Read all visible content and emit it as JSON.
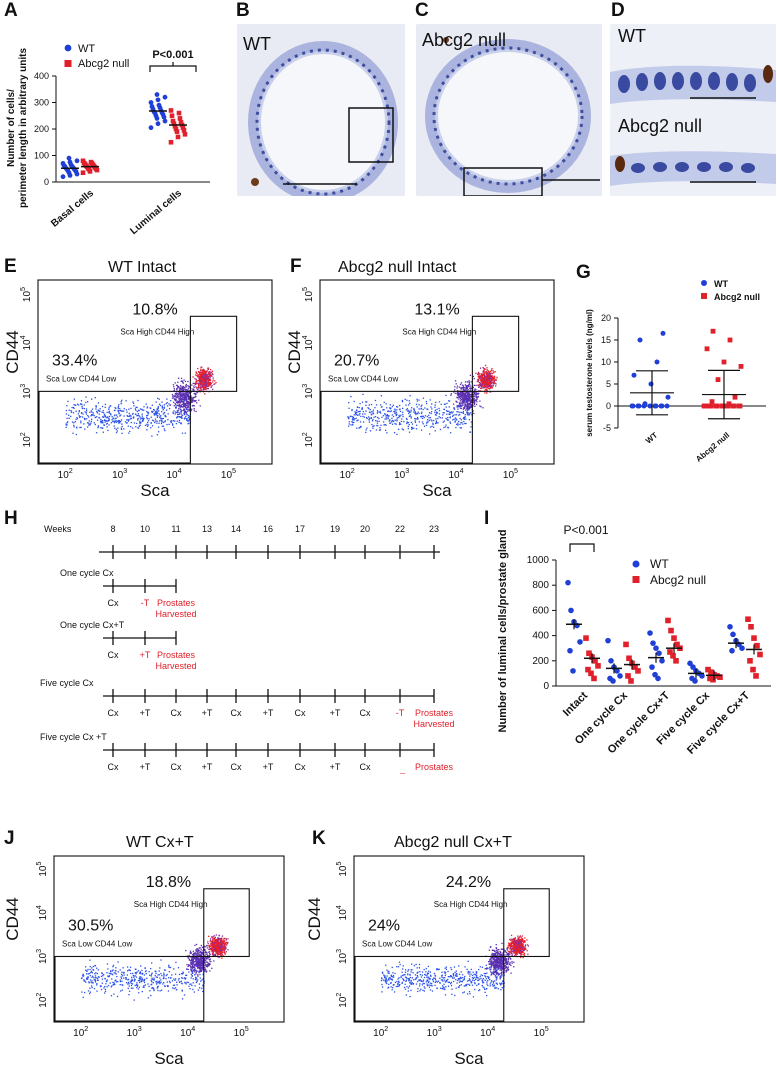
{
  "panel_letters": [
    "A",
    "B",
    "C",
    "D",
    "E",
    "F",
    "G",
    "H",
    "I",
    "J",
    "K"
  ],
  "micrographs": {
    "b": {
      "label": "WT"
    },
    "c": {
      "label": "Abcg2 null"
    },
    "d": {
      "label_top": "WT",
      "label_bottom": "Abcg2 null"
    }
  },
  "colors": {
    "wt": "#1f3fd6",
    "null": "#e0202a",
    "axis": "#111111",
    "gate": "#111111"
  },
  "flow": {
    "x_label": "Sca",
    "y_label": "CD44",
    "x_ticks": [
      "10^2",
      "10^3",
      "10^4",
      "10^5"
    ],
    "y_ticks": [
      "10^2",
      "10^3",
      "10^4",
      "10^5"
    ],
    "gate_high_label": "Sca High CD44 High",
    "gate_low_label": "Sca Low CD44 Low",
    "plots": [
      {
        "id": "e",
        "title": "WT Intact",
        "pct_high": "10.8%",
        "pct_low": "33.4%"
      },
      {
        "id": "f",
        "title": "Abcg2 null Intact",
        "pct_high": "13.1%",
        "pct_low": "20.7%"
      },
      {
        "id": "j",
        "title": "WT Cx+T",
        "pct_high": "18.8%",
        "pct_low": "30.5%"
      },
      {
        "id": "k",
        "title": "Abcg2 null Cx+T",
        "pct_high": "24.2%",
        "pct_low": "24%"
      }
    ]
  },
  "timeline": {
    "weeks_label": "Weeks",
    "weeks": [
      "8",
      "10",
      "11",
      "13",
      "14",
      "16",
      "17",
      "19",
      "20",
      "22",
      "23"
    ],
    "rows": [
      {
        "label": "One cycle Cx",
        "events": [
          {
            "w": "8",
            "t": "Cx",
            "red": false
          },
          {
            "w": "10",
            "t": "-T",
            "red": true
          },
          {
            "w": "11",
            "t": "Prostates\nHarvested",
            "red": true
          }
        ],
        "end": "11"
      },
      {
        "label": "One cycle Cx+T",
        "events": [
          {
            "w": "8",
            "t": "Cx",
            "red": false
          },
          {
            "w": "10",
            "t": "+T",
            "red": true
          },
          {
            "w": "11",
            "t": "Prostates\nHarvested",
            "red": true
          }
        ],
        "end": "11"
      },
      {
        "label": "Five cycle Cx",
        "events": [
          {
            "w": "8",
            "t": "Cx",
            "red": false
          },
          {
            "w": "10",
            "t": "+T",
            "red": false
          },
          {
            "w": "11",
            "t": "Cx",
            "red": false
          },
          {
            "w": "13",
            "t": "+T",
            "red": false
          },
          {
            "w": "14",
            "t": "Cx",
            "red": false
          },
          {
            "w": "16",
            "t": "+T",
            "red": false
          },
          {
            "w": "17",
            "t": "Cx",
            "red": false
          },
          {
            "w": "19",
            "t": "+T",
            "red": false
          },
          {
            "w": "20",
            "t": "Cx",
            "red": false
          },
          {
            "w": "22",
            "t": "-T",
            "red": true
          },
          {
            "w": "23",
            "t": "Prostates\nHarvested",
            "red": true
          }
        ],
        "end": "23"
      },
      {
        "label": "Five cycle Cx +T",
        "events": [
          {
            "w": "8",
            "t": "Cx",
            "red": false
          },
          {
            "w": "10",
            "t": "+T",
            "red": false
          },
          {
            "w": "11",
            "t": "Cx",
            "red": false
          },
          {
            "w": "13",
            "t": "+T",
            "red": false
          },
          {
            "w": "14",
            "t": "Cx",
            "red": false
          },
          {
            "w": "16",
            "t": "+T",
            "red": false
          },
          {
            "w": "17",
            "t": "Cx",
            "red": false
          },
          {
            "w": "19",
            "t": "+T",
            "red": false
          },
          {
            "w": "20",
            "t": "Cx",
            "red": false
          },
          {
            "w": "22",
            "t": "+T",
            "red": true
          },
          {
            "w": "23",
            "t": "Prostates\nHarvested",
            "red": true
          }
        ],
        "end": "23"
      }
    ]
  },
  "chart_data": [
    {
      "id": "A",
      "type": "scatter",
      "title": "",
      "ylabel": "Number of cells/\nperimeter length in arbitrary units",
      "categories": [
        "Basal cells",
        "Luminal cells"
      ],
      "ylim": [
        0,
        400
      ],
      "yticks": [
        0,
        100,
        200,
        300,
        400
      ],
      "annotation": "P<0.001",
      "series": [
        {
          "name": "WT",
          "points": {
            "Basal cells": [
              20,
              25,
              30,
              35,
              40,
              42,
              45,
              48,
              50,
              52,
              55,
              58,
              60,
              62,
              65,
              70,
              75,
              80,
              90
            ],
            "Luminal cells": [
              205,
              220,
              230,
              240,
              245,
              250,
              255,
              260,
              262,
              265,
              270,
              275,
              280,
              285,
              290,
              300,
              310,
              320,
              330
            ]
          },
          "means": {
            "Basal cells": 52,
            "Luminal cells": 268
          }
        },
        {
          "name": "Abcg2 null",
          "points": {
            "Basal cells": [
              35,
              40,
              45,
              48,
              50,
              52,
              55,
              58,
              60,
              62,
              65,
              68,
              70,
              72,
              75,
              80
            ],
            "Luminal cells": [
              150,
              170,
              180,
              190,
              195,
              200,
              205,
              210,
              215,
              220,
              225,
              230,
              240,
              250,
              260,
              270
            ]
          },
          "means": {
            "Basal cells": 58,
            "Luminal cells": 215
          }
        }
      ]
    },
    {
      "id": "G",
      "type": "scatter",
      "title": "",
      "ylabel": "serum testosterone levels (ng/ml)",
      "categories": [
        "WT",
        "Abcg2 null"
      ],
      "ylim": [
        -5,
        20
      ],
      "yticks": [
        -5,
        0,
        5,
        10,
        15,
        20
      ],
      "series": [
        {
          "name": "WT",
          "points": [
            0,
            0,
            0,
            0,
            0,
            0,
            0,
            0,
            0,
            0,
            0,
            0.5,
            2,
            5,
            7,
            10,
            15,
            16.5
          ],
          "mean": 3,
          "sd": 5
        },
        {
          "name": "Abcg2 null",
          "points": [
            0,
            0,
            0,
            0,
            0,
            0,
            0,
            0,
            0,
            0,
            0,
            0,
            0,
            0,
            0,
            0.5,
            1,
            2,
            6,
            9,
            10,
            13,
            15,
            17
          ],
          "mean": 2.6,
          "sd": 5.5
        }
      ]
    },
    {
      "id": "I",
      "type": "scatter",
      "title": "",
      "ylabel": "Number of luminal cells/prostate gland",
      "categories": [
        "Intact",
        "One cycle Cx",
        "One cycle Cx+T",
        "Five cycle Cx",
        "Five cycle Cx+T"
      ],
      "ylim": [
        0,
        1000
      ],
      "yticks": [
        0,
        200,
        400,
        600,
        800,
        1000
      ],
      "annotation": "P<0.001",
      "series": [
        {
          "name": "WT",
          "points": [
            [
              820,
              600,
              510,
              480,
              350,
              280,
              120
            ],
            [
              360,
              200,
              150,
              120,
              80,
              60,
              40
            ],
            [
              420,
              340,
              300,
              260,
              200,
              150,
              90,
              60
            ],
            [
              180,
              150,
              120,
              100,
              80,
              60,
              40
            ],
            [
              470,
              410,
              360,
              330,
              300,
              280
            ]
          ],
          "means": [
            490,
            140,
            225,
            100,
            340
          ]
        },
        {
          "name": "Abcg2 null",
          "points": [
            [
              380,
              260,
              230,
              200,
              160,
              130,
              100,
              60
            ],
            [
              330,
              220,
              180,
              150,
              120,
              80,
              40
            ],
            [
              520,
              440,
              380,
              330,
              300,
              270,
              240,
              200
            ],
            [
              130,
              110,
              90,
              80,
              70,
              60,
              50
            ],
            [
              530,
              470,
              380,
              320,
              250,
              200,
              130,
              80
            ]
          ],
          "means": [
            220,
            170,
            300,
            85,
            290
          ]
        }
      ]
    }
  ]
}
